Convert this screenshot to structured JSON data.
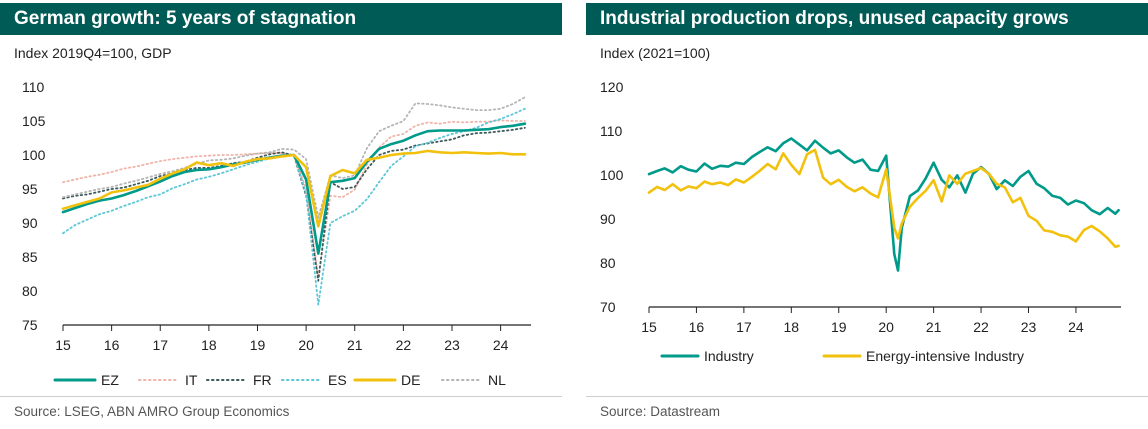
{
  "left": {
    "title": "German growth: 5 years of stagnation",
    "subtitle": "Index 2019Q4=100, GDP",
    "source": "Source: LSEG, ABN AMRO Group Economics"
  },
  "right": {
    "title": "Industrial production drops, unused capacity grows",
    "subtitle": "Index (2021=100)",
    "source": "Source: Datastream"
  },
  "chart_data": [
    {
      "type": "line",
      "title": "German growth: 5 years of stagnation",
      "ylabel": "Index 2019Q4=100, GDP",
      "xlim": [
        2015,
        2024.625
      ],
      "ylim": [
        75,
        110
      ],
      "yticks": [
        75,
        80,
        85,
        90,
        95,
        100,
        105,
        110
      ],
      "xticks": [
        "15",
        "16",
        "17",
        "18",
        "19",
        "20",
        "21",
        "22",
        "23",
        "24"
      ],
      "grid": false,
      "legend": "bottom",
      "x": [
        2015,
        2015.25,
        2015.5,
        2015.75,
        2016,
        2016.25,
        2016.5,
        2016.75,
        2017,
        2017.25,
        2017.5,
        2017.75,
        2018,
        2018.25,
        2018.5,
        2018.75,
        2019,
        2019.25,
        2019.5,
        2019.75,
        2020,
        2020.25,
        2020.5,
        2020.75,
        2021,
        2021.25,
        2021.5,
        2021.75,
        2022,
        2022.25,
        2022.5,
        2022.75,
        2023,
        2023.25,
        2023.5,
        2023.75,
        2024,
        2024.25,
        2024.5
      ],
      "series": [
        {
          "name": "EZ",
          "color": "#009a8a",
          "style": "solid",
          "values": [
            91.6,
            92.2,
            92.8,
            93.3,
            93.6,
            94.1,
            94.7,
            95.4,
            96.1,
            96.9,
            97.5,
            97.8,
            97.9,
            98.2,
            98.6,
            98.9,
            99.3,
            99.6,
            99.9,
            100.0,
            96.4,
            85.5,
            96.0,
            96.2,
            96.6,
            99.0,
            100.9,
            101.6,
            102.1,
            102.9,
            103.5,
            103.6,
            103.6,
            103.6,
            103.7,
            103.8,
            104.1,
            104.3,
            104.6
          ]
        },
        {
          "name": "IT",
          "color": "#f0b4a8",
          "style": "dot",
          "values": [
            96.0,
            96.4,
            96.8,
            97.1,
            97.5,
            98.0,
            98.3,
            98.7,
            99.1,
            99.4,
            99.6,
            99.8,
            99.9,
            100.0,
            100.0,
            100.1,
            100.2,
            100.3,
            100.3,
            100.0,
            95.0,
            82.0,
            94.0,
            93.8,
            94.9,
            98.6,
            101.1,
            102.7,
            103.1,
            104.3,
            104.8,
            104.6,
            104.9,
            104.8,
            104.9,
            104.9,
            105.1,
            105.0,
            105.0
          ]
        },
        {
          "name": "FR",
          "color": "#3d5a5a",
          "style": "dot",
          "values": [
            93.6,
            94.0,
            94.2,
            94.6,
            95.0,
            95.2,
            95.7,
            96.2,
            96.9,
            97.3,
            97.8,
            98.1,
            98.1,
            98.4,
            98.8,
            99.0,
            99.6,
            100.1,
            100.4,
            99.9,
            94.0,
            81.5,
            96.0,
            95.0,
            95.3,
            97.9,
            100.0,
            100.6,
            100.8,
            101.4,
            101.7,
            102.0,
            102.3,
            102.9,
            103.2,
            103.3,
            103.5,
            103.7,
            104.0
          ]
        },
        {
          "name": "ES",
          "color": "#5cc7d7",
          "style": "dot",
          "values": [
            88.5,
            89.7,
            90.5,
            91.3,
            91.8,
            92.5,
            93.1,
            93.8,
            94.2,
            95.1,
            95.7,
            96.4,
            96.8,
            97.3,
            97.9,
            98.5,
            99.0,
            99.5,
            99.8,
            100.0,
            94.3,
            78.0,
            90.0,
            91.0,
            91.8,
            93.5,
            96.0,
            98.4,
            99.8,
            101.3,
            101.8,
            102.5,
            103.1,
            103.5,
            104.0,
            104.8,
            105.3,
            106.0,
            106.8
          ]
        },
        {
          "name": "DE",
          "color": "#f2c10d",
          "style": "solid",
          "values": [
            92.1,
            92.6,
            93.1,
            93.6,
            94.5,
            94.8,
            95.2,
            95.6,
            96.5,
            97.3,
            97.9,
            98.9,
            98.5,
            98.8,
            98.4,
            99.0,
            99.4,
            99.5,
            99.8,
            100.0,
            98.2,
            89.5,
            96.9,
            97.8,
            97.3,
            99.3,
            99.6,
            100.0,
            100.2,
            100.3,
            100.6,
            100.4,
            100.3,
            100.4,
            100.3,
            100.2,
            100.3,
            100.1,
            100.1
          ]
        },
        {
          "name": "NL",
          "color": "#b5b5b5",
          "style": "dot",
          "values": [
            93.8,
            94.2,
            94.6,
            95.0,
            95.3,
            95.8,
            96.2,
            96.7,
            97.2,
            97.6,
            98.1,
            98.7,
            99.2,
            99.3,
            99.5,
            99.9,
            100.2,
            100.4,
            100.9,
            100.8,
            99.4,
            90.8,
            97.0,
            96.6,
            97.0,
            101.0,
            103.5,
            104.3,
            105.0,
            107.6,
            107.5,
            107.3,
            107.0,
            106.8,
            106.6,
            106.6,
            106.8,
            107.5,
            108.5
          ]
        }
      ]
    },
    {
      "type": "line",
      "title": "Industrial production drops, unused capacity grows",
      "ylabel": "Index (2021=100)",
      "xlim": [
        2015,
        2024.95
      ],
      "ylim": [
        70,
        120
      ],
      "yticks": [
        70,
        80,
        90,
        100,
        110,
        120
      ],
      "xticks": [
        "15",
        "16",
        "17",
        "18",
        "19",
        "20",
        "21",
        "22",
        "23",
        "24"
      ],
      "grid": false,
      "legend": "bottom",
      "x": [
        2015,
        2015.17,
        2015.33,
        2015.5,
        2015.67,
        2015.83,
        2016,
        2016.17,
        2016.33,
        2016.5,
        2016.67,
        2016.83,
        2017,
        2017.17,
        2017.33,
        2017.5,
        2017.67,
        2017.83,
        2018,
        2018.17,
        2018.33,
        2018.5,
        2018.67,
        2018.83,
        2019,
        2019.17,
        2019.33,
        2019.5,
        2019.67,
        2019.83,
        2020,
        2020.17,
        2020.25,
        2020.33,
        2020.5,
        2020.67,
        2020.83,
        2021,
        2021.17,
        2021.33,
        2021.5,
        2021.67,
        2021.83,
        2022,
        2022.17,
        2022.33,
        2022.5,
        2022.67,
        2022.83,
        2023,
        2023.17,
        2023.33,
        2023.5,
        2023.67,
        2023.83,
        2024,
        2024.17,
        2024.33,
        2024.5,
        2024.67,
        2024.83,
        2024.9
      ],
      "series": [
        {
          "name": "Industry",
          "color": "#009a8a",
          "style": "solid",
          "values": [
            100.2,
            100.9,
            101.5,
            100.6,
            102.0,
            101.2,
            100.8,
            102.6,
            101.4,
            102.1,
            101.9,
            102.8,
            102.5,
            104.1,
            105.2,
            106.3,
            105.4,
            107.2,
            108.3,
            106.9,
            105.6,
            107.8,
            106.2,
            104.9,
            105.6,
            104.0,
            102.8,
            103.5,
            101.2,
            100.9,
            104.4,
            82.0,
            78.3,
            88.0,
            95.2,
            96.5,
            99.2,
            102.8,
            98.9,
            97.2,
            99.9,
            96.0,
            100.3,
            101.8,
            100.2,
            96.8,
            98.8,
            97.5,
            99.6,
            100.9,
            98.0,
            97.0,
            95.3,
            94.8,
            93.3,
            94.2,
            93.6,
            92.0,
            91.1,
            92.5,
            91.2,
            92.0
          ]
        },
        {
          "name": "Energy-intensive Industry",
          "color": "#f2c10d",
          "style": "solid",
          "values": [
            96.0,
            97.3,
            96.6,
            97.9,
            96.5,
            97.4,
            97.0,
            98.5,
            97.9,
            98.3,
            97.7,
            99.0,
            98.3,
            99.6,
            100.9,
            102.5,
            101.3,
            104.9,
            102.3,
            100.2,
            104.7,
            105.7,
            99.4,
            97.9,
            98.9,
            97.3,
            96.3,
            97.2,
            95.8,
            94.9,
            101.3,
            88.0,
            85.6,
            89.0,
            92.8,
            94.8,
            96.4,
            98.8,
            94.0,
            99.9,
            98.0,
            100.3,
            100.9,
            101.6,
            100.2,
            98.0,
            97.2,
            93.8,
            94.8,
            90.7,
            89.6,
            87.4,
            87.1,
            86.3,
            86.0,
            84.9,
            87.5,
            88.4,
            87.2,
            85.6,
            83.7,
            83.9
          ]
        }
      ]
    }
  ]
}
